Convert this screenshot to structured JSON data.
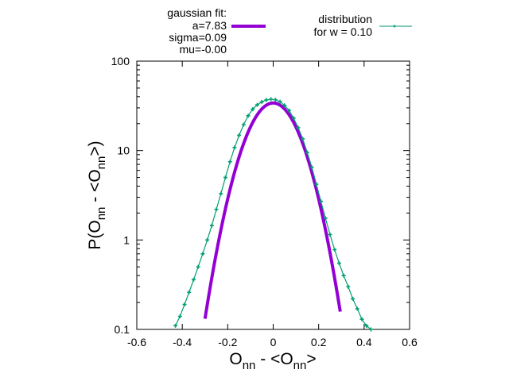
{
  "chart_data": {
    "type": "line",
    "title": "",
    "xlabel": {
      "main": "O",
      "sub": "nn",
      "rest": " - <O",
      "sub2": "nn",
      "end": ">"
    },
    "ylabel": {
      "main": "P(O",
      "sub": "nn",
      "rest": " - <O",
      "sub2": "nn",
      "end": ">)"
    },
    "x_range": [
      -0.6,
      0.6
    ],
    "y_range": [
      0.1,
      100
    ],
    "y_scale": "log",
    "x_ticks": [
      -0.6,
      -0.4,
      -0.2,
      0,
      0.2,
      0.4,
      0.6
    ],
    "x_tick_labels": [
      "-0.6",
      "-0.4",
      "-0.2",
      "0",
      "0.2",
      "0.4",
      "0.6"
    ],
    "y_ticks": [
      0.1,
      1,
      10,
      100
    ],
    "y_tick_labels": [
      "0.1",
      "1",
      "10",
      "100"
    ],
    "grid": false,
    "legend_placement": "top",
    "gaussian_fit": {
      "legend_lines": [
        "gaussian fit:",
        "a=7.83",
        "sigma=0.09",
        "mu=-0.00"
      ],
      "color": "#9400d3",
      "a": 7.83,
      "sigma": 0.09,
      "mu": 0.0,
      "x_min": -0.3,
      "x_max": 0.295
    },
    "distribution": {
      "legend_lines": [
        "distribution",
        "for w = 0.10"
      ],
      "color": "#009e73",
      "x": [
        -0.43,
        -0.41,
        -0.39,
        -0.37,
        -0.35,
        -0.33,
        -0.31,
        -0.29,
        -0.27,
        -0.25,
        -0.23,
        -0.21,
        -0.19,
        -0.17,
        -0.15,
        -0.13,
        -0.11,
        -0.09,
        -0.07,
        -0.05,
        -0.03,
        -0.01,
        0.01,
        0.03,
        0.05,
        0.07,
        0.09,
        0.11,
        0.13,
        0.15,
        0.17,
        0.19,
        0.21,
        0.23,
        0.25,
        0.27,
        0.29,
        0.31,
        0.33,
        0.35,
        0.37,
        0.39,
        0.41,
        0.43
      ],
      "y": [
        0.11,
        0.14,
        0.19,
        0.26,
        0.36,
        0.5,
        0.7,
        1.0,
        1.45,
        2.2,
        3.3,
        5.0,
        7.5,
        10.8,
        14.8,
        19.5,
        24.5,
        29.0,
        32.5,
        35.0,
        36.8,
        37.5,
        37.0,
        35.2,
        32.0,
        28.0,
        23.0,
        18.0,
        13.5,
        9.5,
        6.5,
        4.2,
        2.7,
        1.75,
        1.15,
        0.78,
        0.55,
        0.4,
        0.3,
        0.22,
        0.17,
        0.13,
        0.11,
        0.1
      ]
    }
  }
}
